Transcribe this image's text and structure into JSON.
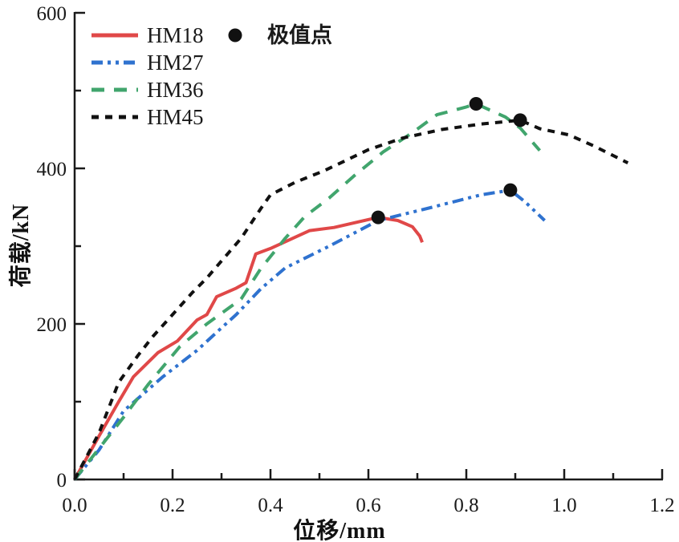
{
  "chart_data": {
    "type": "line",
    "title": "",
    "xlabel": "位移/mm",
    "ylabel": "荷载/kN",
    "xlim": [
      0,
      1.2
    ],
    "ylim": [
      0,
      600
    ],
    "x_major_ticks": [
      0.0,
      0.2,
      0.4,
      0.6,
      0.8,
      1.0,
      1.2
    ],
    "x_tick_labels": [
      "0.0",
      "0.2",
      "0.4",
      "0.6",
      "0.8",
      "1.0",
      "1.2"
    ],
    "x_minor_ticks": [
      0.1,
      0.3,
      0.5,
      0.7,
      0.9,
      1.1
    ],
    "y_major_ticks": [
      0,
      200,
      400,
      600
    ],
    "y_tick_labels": [
      "0",
      "200",
      "400",
      "600"
    ],
    "y_minor_ticks": [
      100,
      300,
      500
    ],
    "grid": false,
    "legend_position": "top-left",
    "axis_color": "#1a1a1a",
    "series": [
      {
        "name": "HM18",
        "color": "#e04848",
        "style": "solid",
        "points": [
          [
            0,
            0
          ],
          [
            0.05,
            56
          ],
          [
            0.09,
            100
          ],
          [
            0.12,
            132
          ],
          [
            0.17,
            163
          ],
          [
            0.21,
            178
          ],
          [
            0.25,
            205
          ],
          [
            0.27,
            212
          ],
          [
            0.29,
            235
          ],
          [
            0.33,
            246
          ],
          [
            0.35,
            253
          ],
          [
            0.37,
            290
          ],
          [
            0.4,
            297
          ],
          [
            0.48,
            320
          ],
          [
            0.53,
            324
          ],
          [
            0.62,
            337
          ],
          [
            0.66,
            333
          ],
          [
            0.69,
            325
          ],
          [
            0.705,
            313
          ],
          [
            0.71,
            305
          ]
        ]
      },
      {
        "name": "HM27",
        "color": "#2f72cf",
        "style": "dash-dot-dot",
        "points": [
          [
            0,
            0
          ],
          [
            0.05,
            38
          ],
          [
            0.1,
            88
          ],
          [
            0.14,
            110
          ],
          [
            0.18,
            132
          ],
          [
            0.25,
            166
          ],
          [
            0.3,
            195
          ],
          [
            0.33,
            212
          ],
          [
            0.38,
            245
          ],
          [
            0.43,
            272
          ],
          [
            0.52,
            300
          ],
          [
            0.62,
            333
          ],
          [
            0.73,
            350
          ],
          [
            0.83,
            366
          ],
          [
            0.89,
            372
          ],
          [
            0.92,
            357
          ],
          [
            0.96,
            333
          ]
        ]
      },
      {
        "name": "HM36",
        "color": "#41a56d",
        "style": "dashed",
        "points": [
          [
            0,
            0
          ],
          [
            0.05,
            40
          ],
          [
            0.1,
            80
          ],
          [
            0.15,
            122
          ],
          [
            0.215,
            171
          ],
          [
            0.27,
            200
          ],
          [
            0.34,
            232
          ],
          [
            0.38,
            271
          ],
          [
            0.43,
            310
          ],
          [
            0.47,
            338
          ],
          [
            0.52,
            362
          ],
          [
            0.57,
            390
          ],
          [
            0.63,
            421
          ],
          [
            0.69,
            446
          ],
          [
            0.74,
            469
          ],
          [
            0.8,
            479
          ],
          [
            0.82,
            483
          ],
          [
            0.88,
            466
          ],
          [
            0.91,
            452
          ],
          [
            0.95,
            423
          ]
        ]
      },
      {
        "name": "HM45",
        "color": "#111111",
        "style": "short-dash",
        "points": [
          [
            0,
            0
          ],
          [
            0.05,
            60
          ],
          [
            0.09,
            125
          ],
          [
            0.13,
            160
          ],
          [
            0.16,
            184
          ],
          [
            0.2,
            212
          ],
          [
            0.24,
            240
          ],
          [
            0.27,
            259
          ],
          [
            0.3,
            281
          ],
          [
            0.34,
            310
          ],
          [
            0.38,
            348
          ],
          [
            0.4,
            366
          ],
          [
            0.45,
            382
          ],
          [
            0.51,
            397
          ],
          [
            0.6,
            424
          ],
          [
            0.67,
            439
          ],
          [
            0.75,
            450
          ],
          [
            0.83,
            457
          ],
          [
            0.91,
            462
          ],
          [
            0.95,
            451
          ],
          [
            1.01,
            443
          ],
          [
            1.06,
            429
          ],
          [
            1.13,
            407
          ]
        ]
      }
    ],
    "extreme_points": {
      "label": "极值点",
      "color": "#111111",
      "points": [
        [
          0.62,
          337
        ],
        [
          0.89,
          372
        ],
        [
          0.82,
          483
        ],
        [
          0.91,
          462
        ]
      ]
    }
  }
}
